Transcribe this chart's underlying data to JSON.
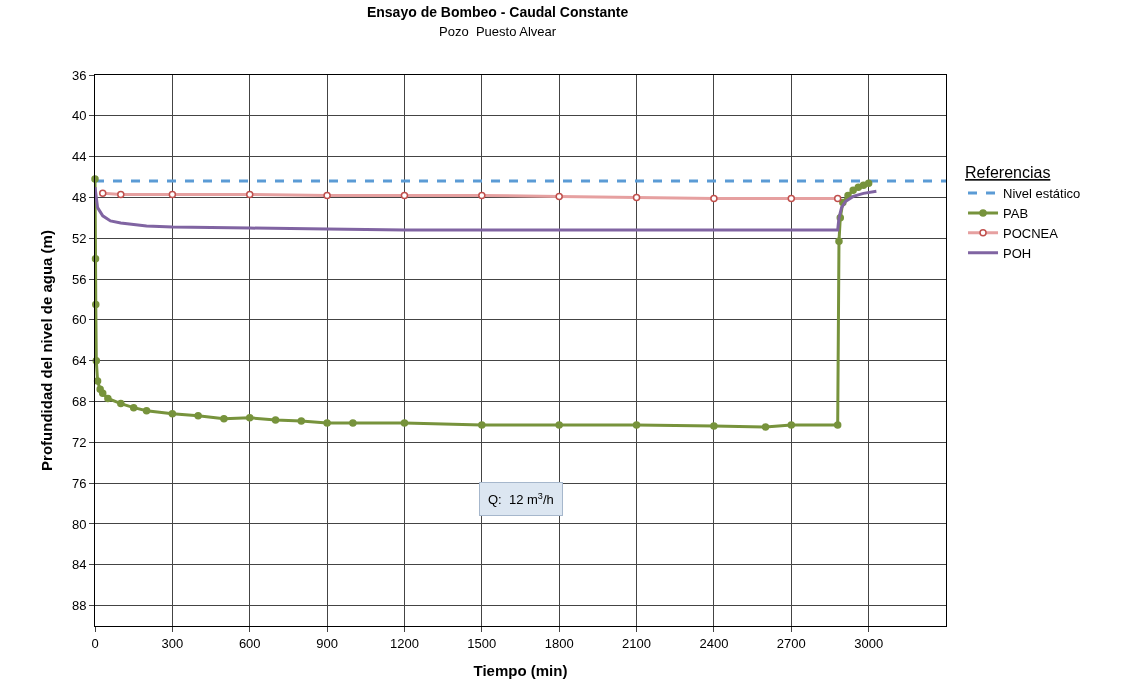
{
  "chart_data": {
    "type": "line",
    "title": "Ensayo de Bombeo - Caudal Constante",
    "subtitle": "Pozo  Puesto Alvear",
    "xlabel": "Tiempo (min)",
    "ylabel": "Profundidad del nivel de agua (m)",
    "legend_title": "Referencias",
    "annotations": [
      "Q:  12 m$^{3}$/h"
    ],
    "xlim": [
      0,
      3300
    ],
    "xticks": [
      0,
      300,
      600,
      900,
      1200,
      1500,
      1800,
      2100,
      2400,
      2700,
      3000
    ],
    "ylim": [
      90,
      36
    ],
    "yticks": [
      36,
      40,
      44,
      48,
      52,
      56,
      60,
      64,
      68,
      72,
      76,
      80,
      84,
      88
    ],
    "grid": true,
    "legend": "right",
    "series": [
      {
        "name": "Nivel estático",
        "color": "#5b9bd5",
        "line_style": "dashed",
        "marker": "none",
        "x": [
          0,
          3300
        ],
        "values": [
          46.4,
          46.4
        ]
      },
      {
        "name": "PAB",
        "color": "#77933c",
        "marker": "circle",
        "x": [
          0,
          2,
          3,
          5,
          10,
          20,
          30,
          50,
          100,
          150,
          200,
          300,
          400,
          500,
          600,
          700,
          800,
          900,
          1000,
          1200,
          1500,
          1800,
          2100,
          2400,
          2600,
          2700,
          2880,
          2885,
          2890,
          2900,
          2920,
          2940,
          2960,
          2980,
          3000
        ],
        "values": [
          46.2,
          54,
          58.5,
          64,
          66,
          66.8,
          67.2,
          67.7,
          68.2,
          68.6,
          68.9,
          69.2,
          69.4,
          69.7,
          69.6,
          69.8,
          69.9,
          70.1,
          70.1,
          70.1,
          70.3,
          70.3,
          70.3,
          70.4,
          70.5,
          70.3,
          70.3,
          52.3,
          50,
          48.5,
          47.8,
          47.3,
          47,
          46.8,
          46.6
        ]
      },
      {
        "name": "POCNEA",
        "color": "#e6a0a0",
        "marker": "circle",
        "x": [
          30,
          100,
          300,
          600,
          900,
          1200,
          1500,
          1800,
          2100,
          2400,
          2700,
          2880
        ],
        "values": [
          47.6,
          47.7,
          47.7,
          47.7,
          47.8,
          47.8,
          47.8,
          47.9,
          48.0,
          48.1,
          48.1,
          48.1
        ]
      },
      {
        "name": "POH",
        "color": "#8064a2",
        "marker": "none",
        "x": [
          0,
          10,
          30,
          60,
          100,
          200,
          300,
          600,
          900,
          1200,
          1800,
          2400,
          2880,
          2885,
          2895,
          2910,
          2940,
          2980,
          3030
        ],
        "values": [
          47.0,
          49.0,
          49.8,
          50.3,
          50.5,
          50.8,
          50.9,
          51.0,
          51.1,
          51.2,
          51.2,
          51.2,
          51.2,
          50.0,
          49.0,
          48.4,
          47.9,
          47.6,
          47.4
        ]
      }
    ]
  }
}
